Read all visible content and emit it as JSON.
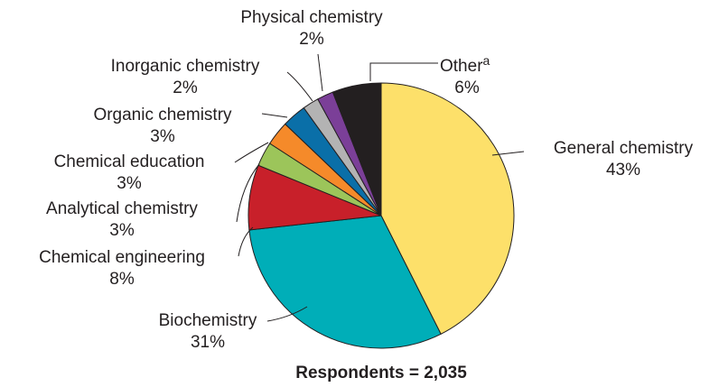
{
  "chart_data": {
    "type": "pie",
    "categories": [
      "General chemistry",
      "Biochemistry",
      "Chemical engineering",
      "Analytical chemistry",
      "Chemical education",
      "Organic chemistry",
      "Inorganic chemistry",
      "Physical chemistry",
      "Other"
    ],
    "values": [
      43,
      31,
      8,
      3,
      3,
      3,
      2,
      2,
      6
    ],
    "value_labels": [
      "43%",
      "31%",
      "8%",
      "3%",
      "3%",
      "3%",
      "2%",
      "2%",
      "6%"
    ],
    "colors": [
      "#fde06a",
      "#00aeb8",
      "#c8202a",
      "#9cc55a",
      "#f58a2a",
      "#0a6fa8",
      "#b3b3b3",
      "#7b3f98",
      "#231f20"
    ],
    "category_marks": [
      null,
      null,
      null,
      null,
      null,
      null,
      null,
      null,
      "a"
    ],
    "caption": "Respondents = 2,035"
  }
}
